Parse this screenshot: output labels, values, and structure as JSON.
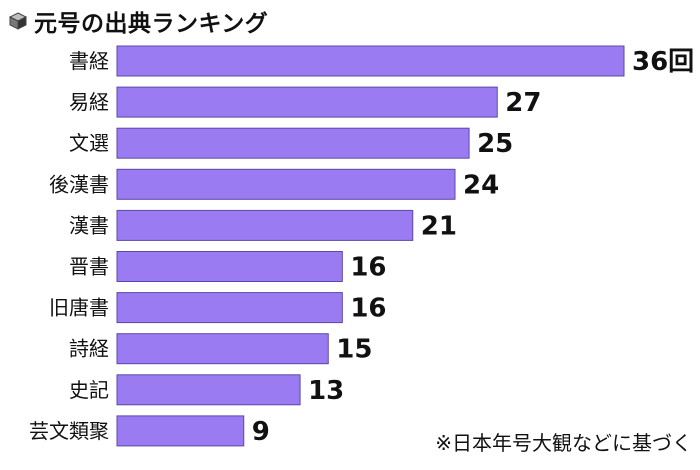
{
  "header": {
    "title": "元号の出典ランキング",
    "icon": "cube-icon"
  },
  "chart_data": {
    "type": "bar",
    "orientation": "horizontal",
    "title": "元号の出典ランキング",
    "categories": [
      "書経",
      "易経",
      "文選",
      "後漢書",
      "漢書",
      "晋書",
      "旧唐書",
      "詩経",
      "史記",
      "芸文類聚"
    ],
    "values": [
      36,
      27,
      25,
      24,
      21,
      16,
      16,
      15,
      13,
      9
    ],
    "data_labels": [
      "36回",
      "27",
      "25",
      "24",
      "21",
      "16",
      "16",
      "15",
      "13",
      "9"
    ],
    "xlabel": "",
    "ylabel": "",
    "xlim": [
      0,
      36
    ],
    "grid": false,
    "legend": "none",
    "bar_color": "#9b7bf2",
    "bar_edge_color": "#5b49a8"
  },
  "note": "※日本年号大観などに基づく"
}
